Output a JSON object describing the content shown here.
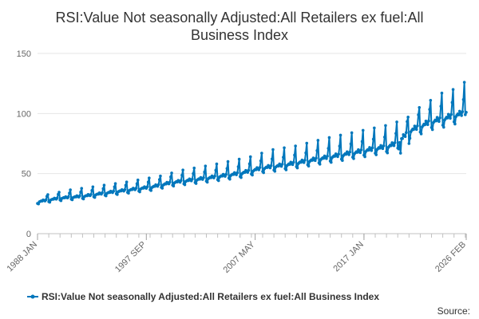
{
  "chart_data": {
    "type": "line",
    "title_lines": [
      "RSI:Value Not seasonally Adjusted:All Retailers ex fuel:All",
      "Business Index"
    ],
    "xlabel": "",
    "ylabel": "",
    "x_tick_labels": [
      "1988 JAN",
      "1997 SEP",
      "2007 MAY",
      "2017 JAN",
      "2026 FEB"
    ],
    "x_range": [
      "1988-01",
      "2026-02"
    ],
    "y_ticks": [
      0,
      50,
      100,
      150
    ],
    "ylim": [
      0,
      150
    ],
    "grid": true,
    "legend_position": "bottom",
    "series": [
      {
        "name": "RSI:Value Not seasonally Adjusted:All Retailers ex fuel:All Business Index",
        "color": "#0077bc",
        "trend_start": 25.0,
        "trend_end": 101.0,
        "annual_values": [
          {
            "year": 1988,
            "base": 26.5,
            "dec": 32.5
          },
          {
            "year": 1990,
            "base": 29.5,
            "dec": 36.5
          },
          {
            "year": 1992,
            "base": 31.0,
            "dec": 39.0
          },
          {
            "year": 1995,
            "base": 35.0,
            "dec": 43.0
          },
          {
            "year": 1998,
            "base": 38.5,
            "dec": 48.0
          },
          {
            "year": 2000,
            "base": 42.5,
            "dec": 53.0
          },
          {
            "year": 2003,
            "base": 46.0,
            "dec": 58.0
          },
          {
            "year": 2006,
            "base": 50.0,
            "dec": 64.0
          },
          {
            "year": 2008,
            "base": 54.5,
            "dec": 70.0
          },
          {
            "year": 2010,
            "base": 57.0,
            "dec": 73.0
          },
          {
            "year": 2013,
            "base": 62.0,
            "dec": 80.0
          },
          {
            "year": 2016,
            "base": 67.0,
            "dec": 86.0
          },
          {
            "year": 2018,
            "base": 70.5,
            "dec": 90.0
          },
          {
            "year": 2019,
            "base": 72.0,
            "dec": 93.0
          },
          {
            "year": 2020,
            "base": 75.0,
            "dec": 97.0
          },
          {
            "year": 2021,
            "base": 85.0,
            "dec": 105.0
          },
          {
            "year": 2022,
            "base": 89.0,
            "dec": 111.0
          },
          {
            "year": 2023,
            "base": 93.0,
            "dec": 117.0
          },
          {
            "year": 2024,
            "base": 95.0,
            "dec": 120.0
          },
          {
            "year": 2025,
            "base": 98.0,
            "dec": 126.0
          },
          {
            "year": 2026,
            "base": 100.0,
            "dec": 100.0
          }
        ],
        "notable_points": [
          {
            "x": "2020-04",
            "y": 67
          },
          {
            "x": "2021-01",
            "y": 75
          },
          {
            "x": "2025-12",
            "y": 126
          },
          {
            "x": "2026-01",
            "y": 99
          },
          {
            "x": "2026-02",
            "y": 101
          }
        ]
      }
    ]
  },
  "legend": {
    "label": "RSI:Value Not seasonally Adjusted:All Retailers ex fuel:All Business Index"
  },
  "footer": {
    "source_label": "Source:"
  }
}
